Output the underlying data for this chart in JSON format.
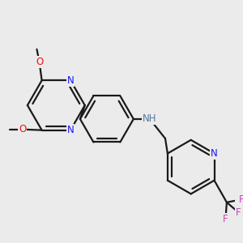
{
  "bg_color": "#ebebeb",
  "bond_color": "#1a1a1a",
  "N_color": "#1414ff",
  "O_color": "#ee1111",
  "F_color": "#cc44bb",
  "NH_color": "#557799",
  "lw": 1.6,
  "dbo": 0.015,
  "fs": 8.5,
  "xlim": [
    0.03,
    0.97
  ],
  "ylim": [
    0.1,
    0.9
  ]
}
